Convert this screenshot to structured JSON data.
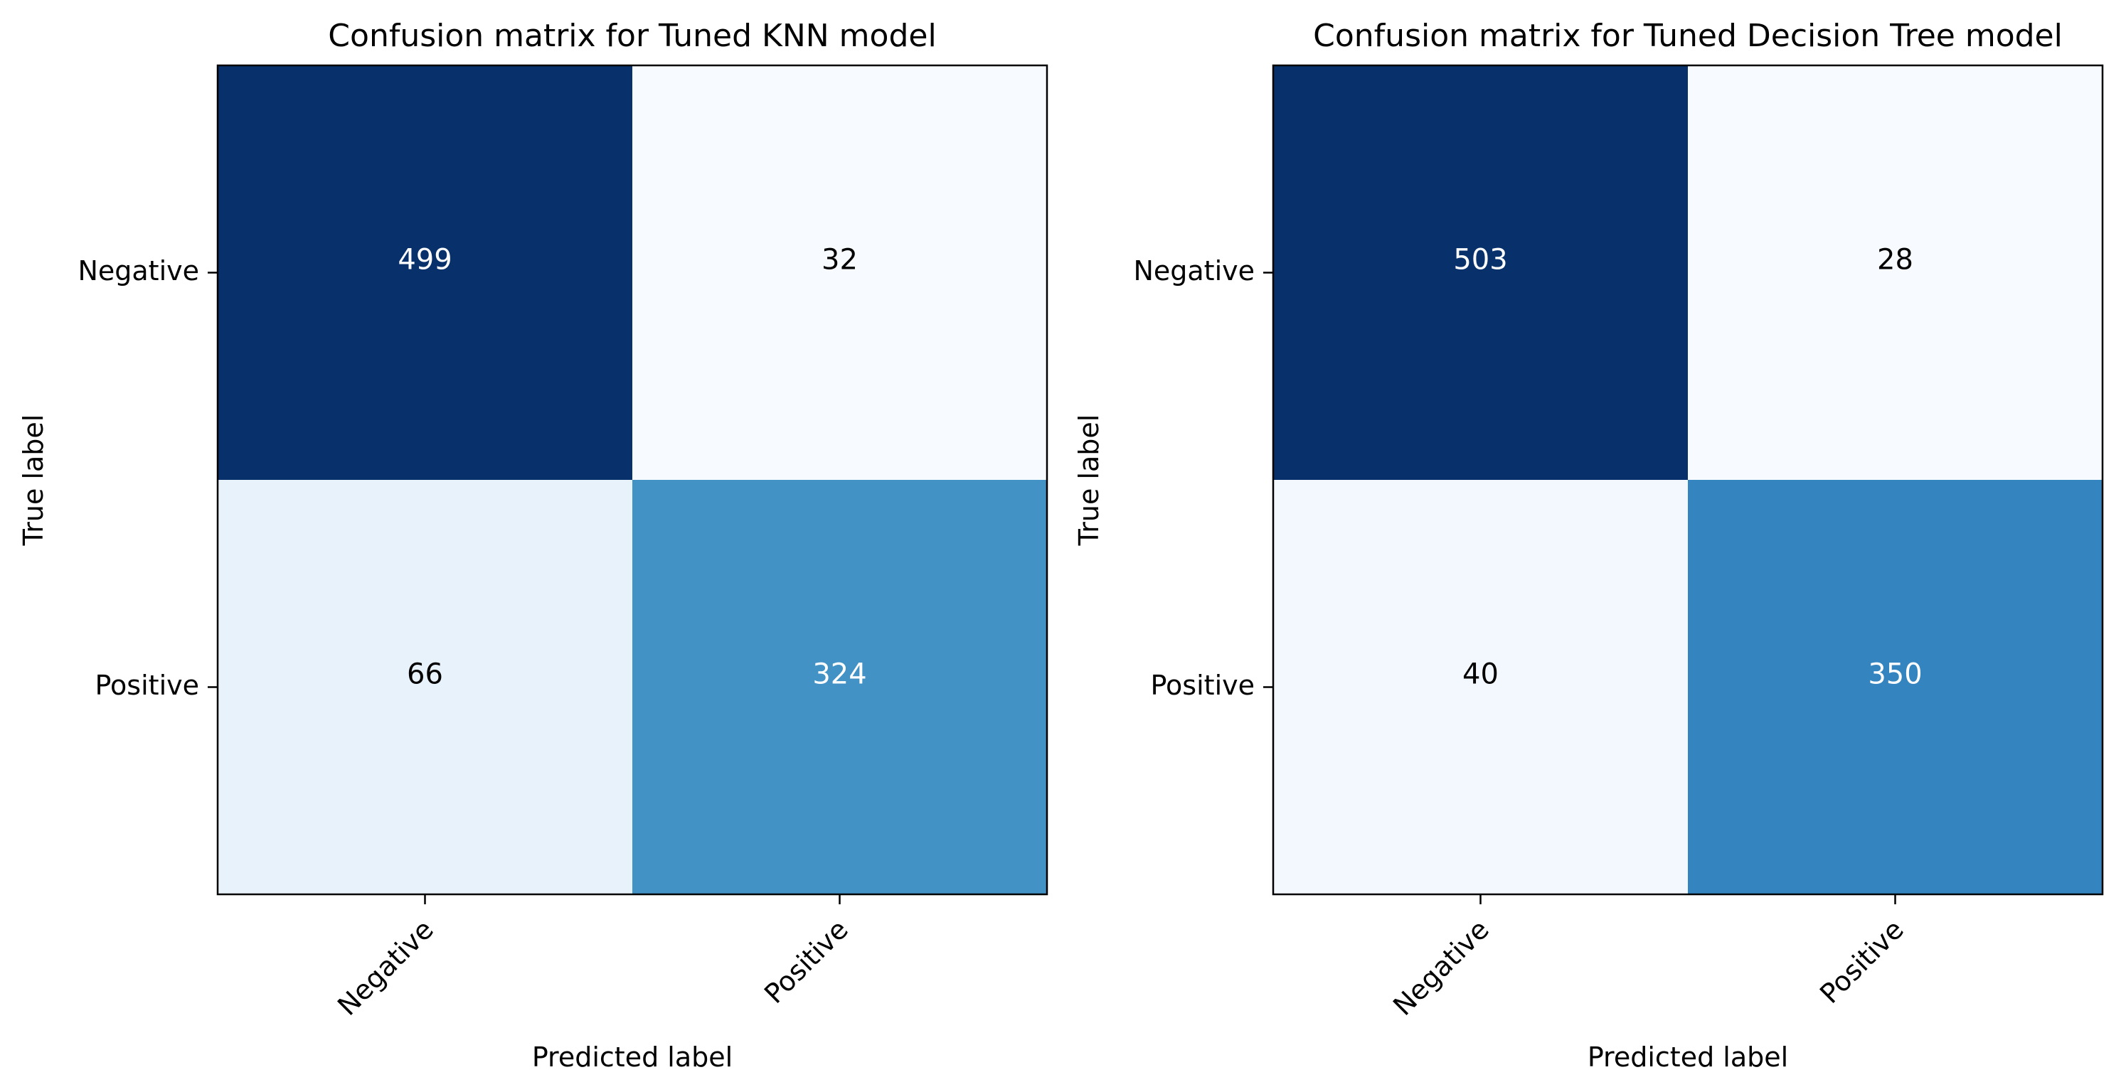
{
  "chart_data": [
    {
      "type": "heatmap",
      "title": "Confusion matrix for Tuned KNN model",
      "xlabel": "Predicted label",
      "ylabel": "True label",
      "x_categories": [
        "Negative",
        "Positive"
      ],
      "y_categories": [
        "Negative",
        "Positive"
      ],
      "values": [
        [
          499,
          32
        ],
        [
          66,
          324
        ]
      ],
      "colormap": "Blues",
      "grid": false
    },
    {
      "type": "heatmap",
      "title": "Confusion matrix for Tuned Decision Tree model",
      "xlabel": "Predicted label",
      "ylabel": "True label",
      "x_categories": [
        "Negative",
        "Positive"
      ],
      "y_categories": [
        "Negative",
        "Positive"
      ],
      "values": [
        [
          503,
          28
        ],
        [
          40,
          350
        ]
      ],
      "colormap": "Blues",
      "grid": false
    }
  ]
}
